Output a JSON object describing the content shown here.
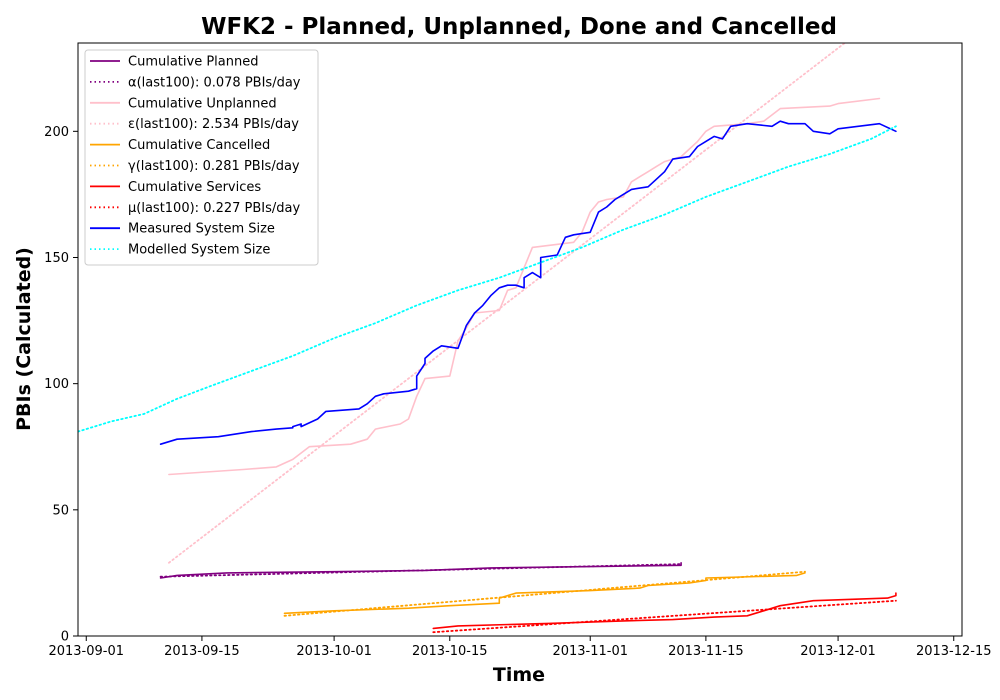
{
  "chart_data": {
    "type": "line",
    "title": "WFK2 - Planned, Unplanned, Done  and Cancelled",
    "xlabel": "Time",
    "ylabel": "PBIs (Calculated)",
    "xlim": [
      "2013-08-31",
      "2013-12-16"
    ],
    "ylim": [
      0,
      235
    ],
    "x_ticks": [
      "2013-09-01",
      "2013-09-15",
      "2013-10-01",
      "2013-10-15",
      "2013-11-01",
      "2013-11-15",
      "2013-12-01",
      "2013-12-15"
    ],
    "y_ticks": [
      0,
      50,
      100,
      150,
      200
    ],
    "grid": false,
    "legend_position": "top-left",
    "series": [
      {
        "name": "Cumulative Planned",
        "color": "#800080",
        "style": "solid",
        "points": [
          [
            "2013-09-10",
            23
          ],
          [
            "2013-09-12",
            24
          ],
          [
            "2013-09-18",
            25
          ],
          [
            "2013-10-01",
            25.5
          ],
          [
            "2013-10-12",
            26
          ],
          [
            "2013-10-20",
            27
          ],
          [
            "2013-11-01",
            27.5
          ],
          [
            "2013-11-12",
            28
          ],
          [
            "2013-11-12",
            29
          ]
        ]
      },
      {
        "name": "α(last100): 0.078 PBIs/day",
        "color": "#800080",
        "style": "dotted",
        "points": [
          [
            "2013-09-10",
            23.5
          ],
          [
            "2013-11-12",
            28.5
          ]
        ]
      },
      {
        "name": "Cumulative Unplanned",
        "color": "#ffc0cb",
        "style": "solid",
        "points": [
          [
            "2013-09-11",
            64
          ],
          [
            "2013-09-20",
            66
          ],
          [
            "2013-09-24",
            67
          ],
          [
            "2013-09-26",
            70
          ],
          [
            "2013-09-28",
            75
          ],
          [
            "2013-10-03",
            76
          ],
          [
            "2013-10-05",
            78
          ],
          [
            "2013-10-06",
            82
          ],
          [
            "2013-10-09",
            84
          ],
          [
            "2013-10-10",
            86
          ],
          [
            "2013-10-11",
            95
          ],
          [
            "2013-10-12",
            102
          ],
          [
            "2013-10-15",
            103
          ],
          [
            "2013-10-16",
            117
          ],
          [
            "2013-10-17",
            122
          ],
          [
            "2013-10-18",
            128
          ],
          [
            "2013-10-21",
            129
          ],
          [
            "2013-10-22",
            137
          ],
          [
            "2013-10-23",
            138
          ],
          [
            "2013-10-25",
            154
          ],
          [
            "2013-10-30",
            156
          ],
          [
            "2013-10-31",
            160
          ],
          [
            "2013-11-01",
            168
          ],
          [
            "2013-11-02",
            172
          ],
          [
            "2013-11-03",
            173
          ],
          [
            "2013-11-05",
            174
          ],
          [
            "2013-11-06",
            180
          ],
          [
            "2013-11-07",
            182
          ],
          [
            "2013-11-08",
            184
          ],
          [
            "2013-11-09",
            186
          ],
          [
            "2013-11-10",
            188
          ],
          [
            "2013-11-12",
            190
          ],
          [
            "2013-11-13",
            193
          ],
          [
            "2013-11-14",
            196
          ],
          [
            "2013-11-15",
            200
          ],
          [
            "2013-11-16",
            202
          ],
          [
            "2013-11-20",
            203
          ],
          [
            "2013-11-22",
            204
          ],
          [
            "2013-11-24",
            209
          ],
          [
            "2013-11-30",
            210
          ],
          [
            "2013-12-01",
            211
          ],
          [
            "2013-12-06",
            213
          ]
        ]
      },
      {
        "name": "ε(last100): 2.534 PBIs/day",
        "color": "#ffc0cb",
        "style": "dotted",
        "points": [
          [
            "2013-09-11",
            29
          ],
          [
            "2013-12-03",
            238
          ]
        ]
      },
      {
        "name": "Cumulative Cancelled",
        "color": "#ffa500",
        "style": "solid",
        "points": [
          [
            "2013-09-25",
            9
          ],
          [
            "2013-10-01",
            10
          ],
          [
            "2013-10-10",
            11
          ],
          [
            "2013-10-15",
            12
          ],
          [
            "2013-10-21",
            13
          ],
          [
            "2013-10-21",
            15
          ],
          [
            "2013-10-23",
            17
          ],
          [
            "2013-11-01",
            18
          ],
          [
            "2013-11-07",
            19
          ],
          [
            "2013-11-08",
            20
          ],
          [
            "2013-11-13",
            21
          ],
          [
            "2013-11-15",
            22
          ],
          [
            "2013-11-15",
            23
          ],
          [
            "2013-11-26",
            24
          ],
          [
            "2013-11-27",
            25
          ]
        ]
      },
      {
        "name": "γ(last100): 0.281 PBIs/day",
        "color": "#ffa500",
        "style": "dotted",
        "points": [
          [
            "2013-09-25",
            8
          ],
          [
            "2013-11-27",
            25.5
          ]
        ]
      },
      {
        "name": "Cumulative Services",
        "color": "#ff0000",
        "style": "solid",
        "points": [
          [
            "2013-10-13",
            3
          ],
          [
            "2013-10-16",
            4
          ],
          [
            "2013-10-27",
            5
          ],
          [
            "2013-11-05",
            6
          ],
          [
            "2013-11-11",
            6.5
          ],
          [
            "2013-11-16",
            7.5
          ],
          [
            "2013-11-20",
            8
          ],
          [
            "2013-11-22",
            10
          ],
          [
            "2013-11-24",
            12
          ],
          [
            "2013-11-26",
            13
          ],
          [
            "2013-11-28",
            14
          ],
          [
            "2013-12-07",
            15
          ],
          [
            "2013-12-08",
            16
          ],
          [
            "2013-12-08",
            17
          ]
        ]
      },
      {
        "name": "μ(last100): 0.227 PBIs/day",
        "color": "#ff0000",
        "style": "dotted",
        "points": [
          [
            "2013-10-13",
            1.5
          ],
          [
            "2013-12-08",
            14
          ]
        ]
      },
      {
        "name": "Measured System Size",
        "color": "#0000ff",
        "style": "solid",
        "points": [
          [
            "2013-09-10",
            76
          ],
          [
            "2013-09-12",
            78
          ],
          [
            "2013-09-17",
            79
          ],
          [
            "2013-09-21",
            81
          ],
          [
            "2013-09-24",
            82
          ],
          [
            "2013-09-26",
            82.5
          ],
          [
            "2013-09-26",
            83
          ],
          [
            "2013-09-27",
            84
          ],
          [
            "2013-09-27",
            83
          ],
          [
            "2013-09-29",
            86
          ],
          [
            "2013-09-30",
            89
          ],
          [
            "2013-10-04",
            90
          ],
          [
            "2013-10-05",
            92
          ],
          [
            "2013-10-06",
            95
          ],
          [
            "2013-10-07",
            96
          ],
          [
            "2013-10-10",
            97
          ],
          [
            "2013-10-11",
            98
          ],
          [
            "2013-10-11",
            103
          ],
          [
            "2013-10-12",
            108
          ],
          [
            "2013-10-12",
            110
          ],
          [
            "2013-10-13",
            113
          ],
          [
            "2013-10-14",
            115
          ],
          [
            "2013-10-16",
            114
          ],
          [
            "2013-10-17",
            123
          ],
          [
            "2013-10-18",
            128
          ],
          [
            "2013-10-19",
            131
          ],
          [
            "2013-10-20",
            135
          ],
          [
            "2013-10-21",
            138
          ],
          [
            "2013-10-22",
            139
          ],
          [
            "2013-10-23",
            139
          ],
          [
            "2013-10-24",
            138
          ],
          [
            "2013-10-24",
            142
          ],
          [
            "2013-10-25",
            144
          ],
          [
            "2013-10-26",
            142
          ],
          [
            "2013-10-26",
            150
          ],
          [
            "2013-10-28",
            151
          ],
          [
            "2013-10-29",
            158
          ],
          [
            "2013-10-30",
            159
          ],
          [
            "2013-11-01",
            160
          ],
          [
            "2013-11-02",
            168
          ],
          [
            "2013-11-03",
            170
          ],
          [
            "2013-11-04",
            173
          ],
          [
            "2013-11-05",
            175
          ],
          [
            "2013-11-06",
            177
          ],
          [
            "2013-11-08",
            178
          ],
          [
            "2013-11-09",
            181
          ],
          [
            "2013-11-10",
            184
          ],
          [
            "2013-11-11",
            189
          ],
          [
            "2013-11-13",
            190
          ],
          [
            "2013-11-14",
            194
          ],
          [
            "2013-11-15",
            196
          ],
          [
            "2013-11-16",
            198
          ],
          [
            "2013-11-17",
            197
          ],
          [
            "2013-11-18",
            202
          ],
          [
            "2013-11-20",
            203
          ],
          [
            "2013-11-23",
            202
          ],
          [
            "2013-11-24",
            204
          ],
          [
            "2013-11-25",
            203
          ],
          [
            "2013-11-27",
            203
          ],
          [
            "2013-11-28",
            200
          ],
          [
            "2013-11-30",
            199
          ],
          [
            "2013-12-01",
            201
          ],
          [
            "2013-12-06",
            203
          ],
          [
            "2013-12-08",
            200
          ]
        ]
      },
      {
        "name": "Modelled System Size",
        "color": "#00ffff",
        "style": "dotted",
        "points": [
          [
            "2013-08-31",
            81
          ],
          [
            "2013-09-04",
            85
          ],
          [
            "2013-09-08",
            88
          ],
          [
            "2013-09-12",
            94
          ],
          [
            "2013-09-16",
            99
          ],
          [
            "2013-09-21",
            105
          ],
          [
            "2013-09-26",
            111
          ],
          [
            "2013-10-01",
            118
          ],
          [
            "2013-10-06",
            124
          ],
          [
            "2013-10-11",
            131
          ],
          [
            "2013-10-16",
            137
          ],
          [
            "2013-10-21",
            142
          ],
          [
            "2013-10-26",
            148
          ],
          [
            "2013-10-31",
            154
          ],
          [
            "2013-11-05",
            161
          ],
          [
            "2013-11-10",
            167
          ],
          [
            "2013-11-15",
            174
          ],
          [
            "2013-11-20",
            180
          ],
          [
            "2013-11-25",
            186
          ],
          [
            "2013-11-30",
            191
          ],
          [
            "2013-12-05",
            197
          ],
          [
            "2013-12-08",
            202
          ]
        ]
      }
    ]
  }
}
